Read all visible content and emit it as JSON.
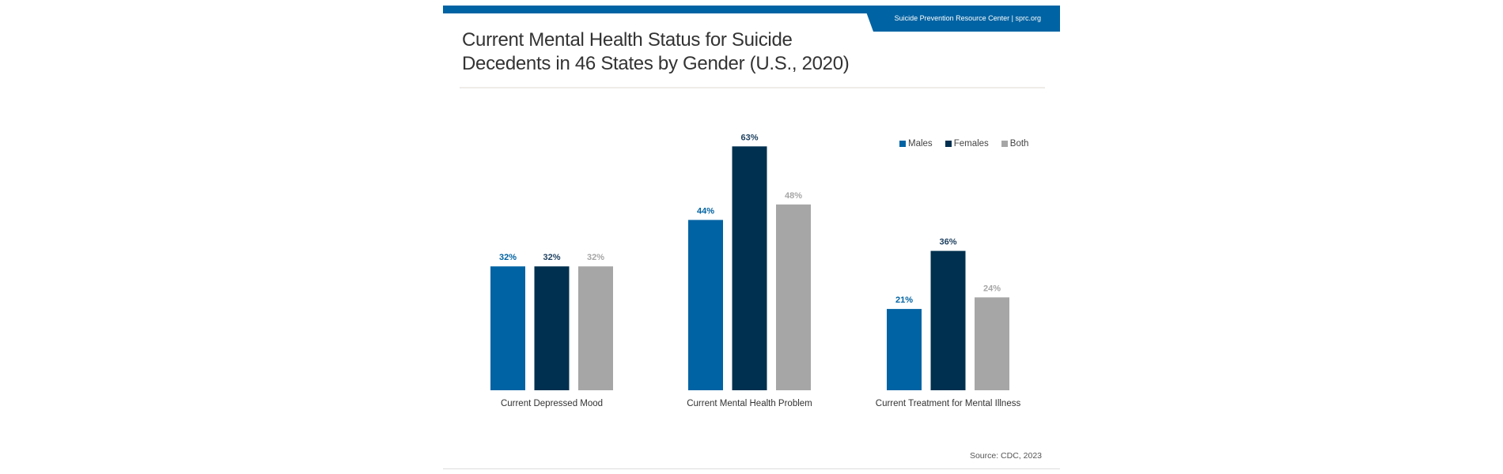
{
  "header": {
    "org_text": "Suicide Prevention Resource Center  |  sprc.org",
    "brand_color": "#0063a3"
  },
  "title": "Current Mental Health Status for Suicide Decedents in 46 States by Gender (U.S., 2020)",
  "title_lines": [
    "Current Mental Health Status for Suicide",
    "Decedents in 46 States by Gender (U.S., 2020)"
  ],
  "source": "Source: CDC, 2023",
  "chart_data": {
    "type": "bar",
    "title": "Current Mental Health Status for Suicide Decedents in 46 States by Gender (U.S., 2020)",
    "xlabel": "",
    "ylabel": "",
    "ylim": [
      0,
      70
    ],
    "grid": false,
    "legend_position": "top-right",
    "categories": [
      "Current Depressed Mood",
      "Current Mental Health Problem",
      "Current Treatment for Mental Illness"
    ],
    "series": [
      {
        "name": "Males",
        "color": "#0063a3",
        "label_color": "#0063a3",
        "values": [
          32,
          44,
          21
        ],
        "labels": [
          "32%",
          "44%",
          "21%"
        ]
      },
      {
        "name": "Females",
        "color": "#00304f",
        "label_color": "#1d3f5e",
        "values": [
          32,
          63,
          36
        ],
        "labels": [
          "32%",
          "63%",
          "36%"
        ]
      },
      {
        "name": "Both",
        "color": "#a6a6a6",
        "label_color": "#a6a6a6",
        "values": [
          32,
          48,
          24
        ],
        "labels": [
          "32%",
          "48%",
          "24%"
        ]
      }
    ]
  }
}
